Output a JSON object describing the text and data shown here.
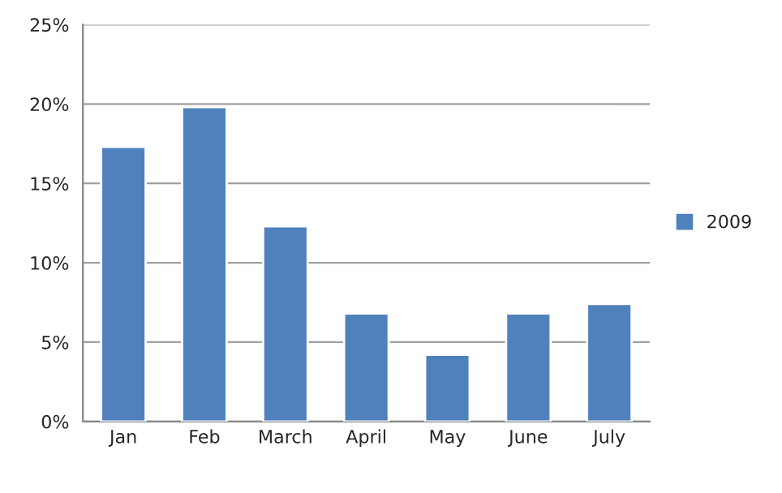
{
  "chart_data": {
    "type": "bar",
    "categories": [
      "Jan",
      "Feb",
      "March",
      "April",
      "May",
      "June",
      "July"
    ],
    "series": [
      {
        "name": "2009",
        "color": "#4f81bd",
        "values": [
          17.3,
          19.8,
          12.3,
          6.8,
          4.2,
          6.8,
          7.4
        ]
      }
    ],
    "ylim": [
      0,
      25
    ],
    "yticks": [
      {
        "value": 0,
        "label": "0%"
      },
      {
        "value": 5,
        "label": "5%"
      },
      {
        "value": 10,
        "label": "10%"
      },
      {
        "value": 15,
        "label": "15%"
      },
      {
        "value": 20,
        "label": "20%"
      },
      {
        "value": 25,
        "label": "25%"
      }
    ],
    "grid": "y",
    "legend": "right"
  }
}
